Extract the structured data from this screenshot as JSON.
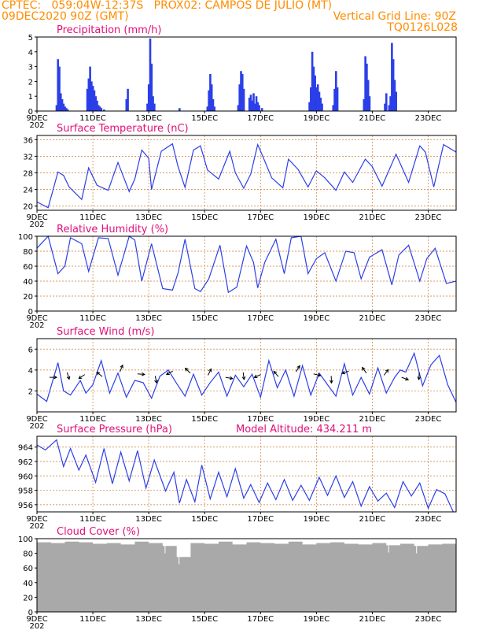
{
  "header": {
    "line1_left": "CPTEC:   059:04W-12:37S   PROX02: CAMPOS DE JULIO (MT)",
    "line2_left": "09DEC2020 90Z (GMT)",
    "line2_right": "Vertical Grid Line: 90Z",
    "line3_right": "TQ0126L028"
  },
  "x_tick_labels": [
    "9DEC",
    "11DEC",
    "13DEC",
    "15DEC",
    "17DEC",
    "19DEC",
    "21DEC",
    "23DEC"
  ],
  "year_stub": "202",
  "colors": {
    "title": "#e0107a",
    "header": "#ff8c00",
    "line": "#2b3fe8",
    "bar": "#2b3fe8",
    "cloud": "#a9a9a9",
    "grid": "#cc7a30"
  },
  "panels": {
    "precip": {
      "title": "Precipitation (mm/h)",
      "yticks": [
        "0",
        "1",
        "2",
        "3",
        "4",
        "5"
      ]
    },
    "temp": {
      "title": "Surface Temperature (nC)",
      "yticks": [
        "20",
        "24",
        "28",
        "32",
        "36"
      ]
    },
    "rh": {
      "title": "Relative Humidity (%)",
      "yticks": [
        "0",
        "20",
        "40",
        "60",
        "80",
        "100"
      ]
    },
    "wind": {
      "title": "Surface Wind (m/s)",
      "yticks": [
        "2",
        "4",
        "6"
      ]
    },
    "pres": {
      "title": "Surface Pressure (hPa)",
      "extra": "Model Altitude: 434.211 m",
      "yticks": [
        "956",
        "958",
        "960",
        "962",
        "964"
      ]
    },
    "cloud": {
      "title": "Cloud Cover (%)",
      "yticks": [
        "0",
        "20",
        "40",
        "60",
        "80",
        "100"
      ]
    }
  },
  "chart_data": [
    {
      "type": "bar",
      "title": "Precipitation (mm/h)",
      "x_start": "9DEC",
      "x_end": "24DEC",
      "ylim": [
        0,
        5
      ],
      "x": [
        0.7,
        0.75,
        0.8,
        0.85,
        0.9,
        0.95,
        1.0,
        1.05,
        1.1,
        1.8,
        1.85,
        1.9,
        1.95,
        2.0,
        2.05,
        2.1,
        2.15,
        2.2,
        2.25,
        2.3,
        2.4,
        3.2,
        3.25,
        3.95,
        4.0,
        4.05,
        4.1,
        4.15,
        4.2,
        5.1,
        6.1,
        6.15,
        6.2,
        6.25,
        6.3,
        6.35,
        7.2,
        7.25,
        7.3,
        7.35,
        7.4,
        7.6,
        7.65,
        7.7,
        7.75,
        7.8,
        7.85,
        7.9,
        7.95,
        8.05,
        9.75,
        9.8,
        9.85,
        9.9,
        9.95,
        10.0,
        10.05,
        10.1,
        10.15,
        10.2,
        10.6,
        10.65,
        10.7,
        10.75,
        11.7,
        11.75,
        11.8,
        11.85,
        11.9,
        12.45,
        12.5,
        12.6,
        12.65,
        12.7,
        12.75,
        12.8,
        12.85
      ],
      "values": [
        0.4,
        3.5,
        3.0,
        1.2,
        0.8,
        0.5,
        0.3,
        0.2,
        0.1,
        1.5,
        2.2,
        3.0,
        2.0,
        1.7,
        1.4,
        1.0,
        0.7,
        0.4,
        0.3,
        0.2,
        0.1,
        0.8,
        1.5,
        0.5,
        1.8,
        4.9,
        3.2,
        1.0,
        0.5,
        0.2,
        0.3,
        1.4,
        2.5,
        1.8,
        0.8,
        0.3,
        0.4,
        1.8,
        2.7,
        2.5,
        1.5,
        0.9,
        1.1,
        0.7,
        1.2,
        0.5,
        1.0,
        0.6,
        0.4,
        0.2,
        0.6,
        1.6,
        4.0,
        3.0,
        2.4,
        1.6,
        1.8,
        1.3,
        0.9,
        0.5,
        0.4,
        1.5,
        2.7,
        1.6,
        0.8,
        3.7,
        3.2,
        2.1,
        1.0,
        0.5,
        1.2,
        0.4,
        1.0,
        4.6,
        3.5,
        2.1,
        1.3
      ]
    },
    {
      "type": "line",
      "title": "Surface Temperature (nC)",
      "x_start": "9DEC",
      "x_end": "24DEC",
      "ylim": [
        19,
        37
      ],
      "x": [
        0,
        0.4,
        0.75,
        0.95,
        1.15,
        1.6,
        1.85,
        2.15,
        2.55,
        2.9,
        3.3,
        3.5,
        3.75,
        4.0,
        4.1,
        4.45,
        4.85,
        5.05,
        5.3,
        5.6,
        5.85,
        6.1,
        6.5,
        6.9,
        7.1,
        7.4,
        7.65,
        7.9,
        8.05,
        8.4,
        8.8,
        9.0,
        9.35,
        9.7,
        10.0,
        10.3,
        10.7,
        11.0,
        11.3,
        11.75,
        12.0,
        12.35,
        12.85,
        13.05,
        13.3,
        13.7,
        13.9,
        14.2,
        14.55,
        15.0
      ],
      "values": [
        21,
        19.6,
        28.2,
        27.4,
        24.6,
        21.6,
        29.2,
        25,
        23.8,
        30.5,
        23.5,
        26.5,
        33.5,
        31.5,
        24,
        33.2,
        35,
        29.5,
        24.5,
        33.5,
        34.5,
        28.7,
        26.5,
        33.2,
        28,
        24.3,
        27.7,
        34.8,
        32.5,
        26.8,
        24.4,
        31.3,
        28.8,
        24.6,
        28.5,
        26.8,
        23.8,
        28.2,
        25.7,
        31.3,
        29.5,
        24.8,
        32.5,
        29.5,
        25.7,
        34.5,
        33,
        24.6,
        34.8,
        33
      ]
    },
    {
      "type": "line",
      "title": "Relative Humidity (%)",
      "x_start": "9DEC",
      "x_end": "24DEC",
      "ylim": [
        0,
        100
      ],
      "x": [
        0,
        0.4,
        0.75,
        1.0,
        1.2,
        1.6,
        1.85,
        2.2,
        2.55,
        2.9,
        3.3,
        3.5,
        3.75,
        4.1,
        4.5,
        4.85,
        5.05,
        5.3,
        5.65,
        5.85,
        6.15,
        6.55,
        6.85,
        7.15,
        7.5,
        7.75,
        7.9,
        8.15,
        8.55,
        8.85,
        9.1,
        9.45,
        9.7,
        10.0,
        10.3,
        10.7,
        11.05,
        11.35,
        11.6,
        11.9,
        12.35,
        12.7,
        12.95,
        13.3,
        13.7,
        13.95,
        14.25,
        14.65,
        15.0
      ],
      "values": [
        84,
        100,
        50,
        60,
        98,
        90,
        53,
        98,
        97,
        48,
        100,
        95,
        40,
        90,
        30,
        28,
        51,
        96,
        30,
        26,
        43,
        88,
        25,
        32,
        87,
        65,
        31,
        65,
        96,
        50,
        98,
        100,
        50,
        70,
        78,
        40,
        80,
        78,
        43,
        72,
        82,
        35,
        75,
        88,
        40,
        70,
        84,
        37,
        40
      ]
    },
    {
      "type": "line",
      "title": "Surface Wind (m/s)",
      "x_start": "9DEC",
      "x_end": "24DEC",
      "ylim": [
        0,
        7
      ],
      "x": [
        0,
        0.35,
        0.75,
        0.95,
        1.2,
        1.55,
        1.75,
        2.0,
        2.3,
        2.6,
        2.9,
        3.2,
        3.5,
        3.8,
        4.1,
        4.4,
        4.7,
        5.0,
        5.3,
        5.6,
        5.9,
        6.2,
        6.5,
        6.8,
        7.1,
        7.4,
        7.7,
        8.0,
        8.3,
        8.6,
        8.9,
        9.2,
        9.5,
        9.8,
        10.1,
        10.4,
        10.7,
        11.0,
        11.3,
        11.6,
        11.9,
        12.2,
        12.5,
        12.8,
        13.0,
        13.2,
        13.5,
        13.8,
        14.1,
        14.4,
        14.7,
        15.0
      ],
      "values": [
        1.7,
        1.0,
        4.7,
        2.0,
        1.6,
        3.0,
        1.8,
        2.6,
        4.9,
        1.8,
        3.7,
        1.4,
        3.0,
        2.8,
        1.3,
        3.4,
        4.0,
        2.7,
        1.5,
        3.6,
        1.6,
        2.8,
        3.8,
        1.5,
        3.5,
        2.4,
        3.6,
        1.4,
        4.9,
        2.3,
        4.0,
        1.5,
        4.4,
        1.6,
        3.7,
        2.6,
        1.5,
        4.6,
        1.6,
        3.3,
        1.7,
        4.2,
        1.8,
        3.3,
        4.0,
        3.8,
        5.6,
        2.5,
        4.5,
        5.4,
        2.6,
        0.9
      ]
    },
    {
      "type": "line",
      "title": "Surface Pressure (hPa)",
      "x_start": "9DEC",
      "x_end": "24DEC",
      "ylim": [
        955,
        965.5
      ],
      "x": [
        0,
        0.3,
        0.7,
        0.95,
        1.2,
        1.5,
        1.75,
        2.1,
        2.4,
        2.7,
        3.0,
        3.3,
        3.6,
        3.9,
        4.2,
        4.6,
        4.9,
        5.1,
        5.35,
        5.65,
        5.9,
        6.2,
        6.5,
        6.8,
        7.1,
        7.4,
        7.65,
        7.95,
        8.25,
        8.55,
        8.85,
        9.15,
        9.45,
        9.75,
        10.1,
        10.4,
        10.7,
        11.0,
        11.3,
        11.6,
        11.9,
        12.2,
        12.5,
        12.8,
        13.1,
        13.4,
        13.7,
        14.0,
        14.3,
        14.6,
        14.9
      ],
      "values": [
        964.3,
        963.6,
        965,
        961.3,
        963.8,
        960.8,
        962.9,
        959.1,
        963.8,
        958.9,
        963.3,
        959.3,
        963.5,
        958.3,
        962.2,
        957.9,
        960.5,
        956.2,
        959.5,
        956.4,
        961.5,
        956.8,
        960.5,
        957.1,
        961,
        956.9,
        958.8,
        956.3,
        959,
        956.7,
        959.5,
        956.6,
        958.7,
        956.6,
        959.8,
        957.3,
        960,
        957,
        959.2,
        955.8,
        958.5,
        956.5,
        957.6,
        955.6,
        959.2,
        957.2,
        959,
        955.5,
        958.1,
        957.5,
        955
      ]
    },
    {
      "type": "bar",
      "title": "Cloud Cover (%)",
      "x_start": "9DEC",
      "x_end": "24DEC",
      "ylim": [
        0,
        100
      ],
      "x": [
        0,
        0.5,
        1,
        1.5,
        2,
        2.5,
        3,
        3.5,
        4,
        4.5,
        5,
        5.5,
        6,
        6.5,
        7,
        7.5,
        8,
        8.5,
        9,
        9.5,
        10,
        10.5,
        11,
        11.5,
        12,
        12.5,
        13,
        13.5,
        14,
        14.5,
        15
      ],
      "values": [
        95,
        94,
        96,
        95,
        93,
        94,
        92,
        96,
        94,
        90,
        75,
        94,
        93,
        96,
        92,
        95,
        94,
        93,
        96,
        92,
        94,
        95,
        93,
        92,
        94,
        91,
        93,
        90,
        92,
        93,
        92
      ]
    }
  ]
}
